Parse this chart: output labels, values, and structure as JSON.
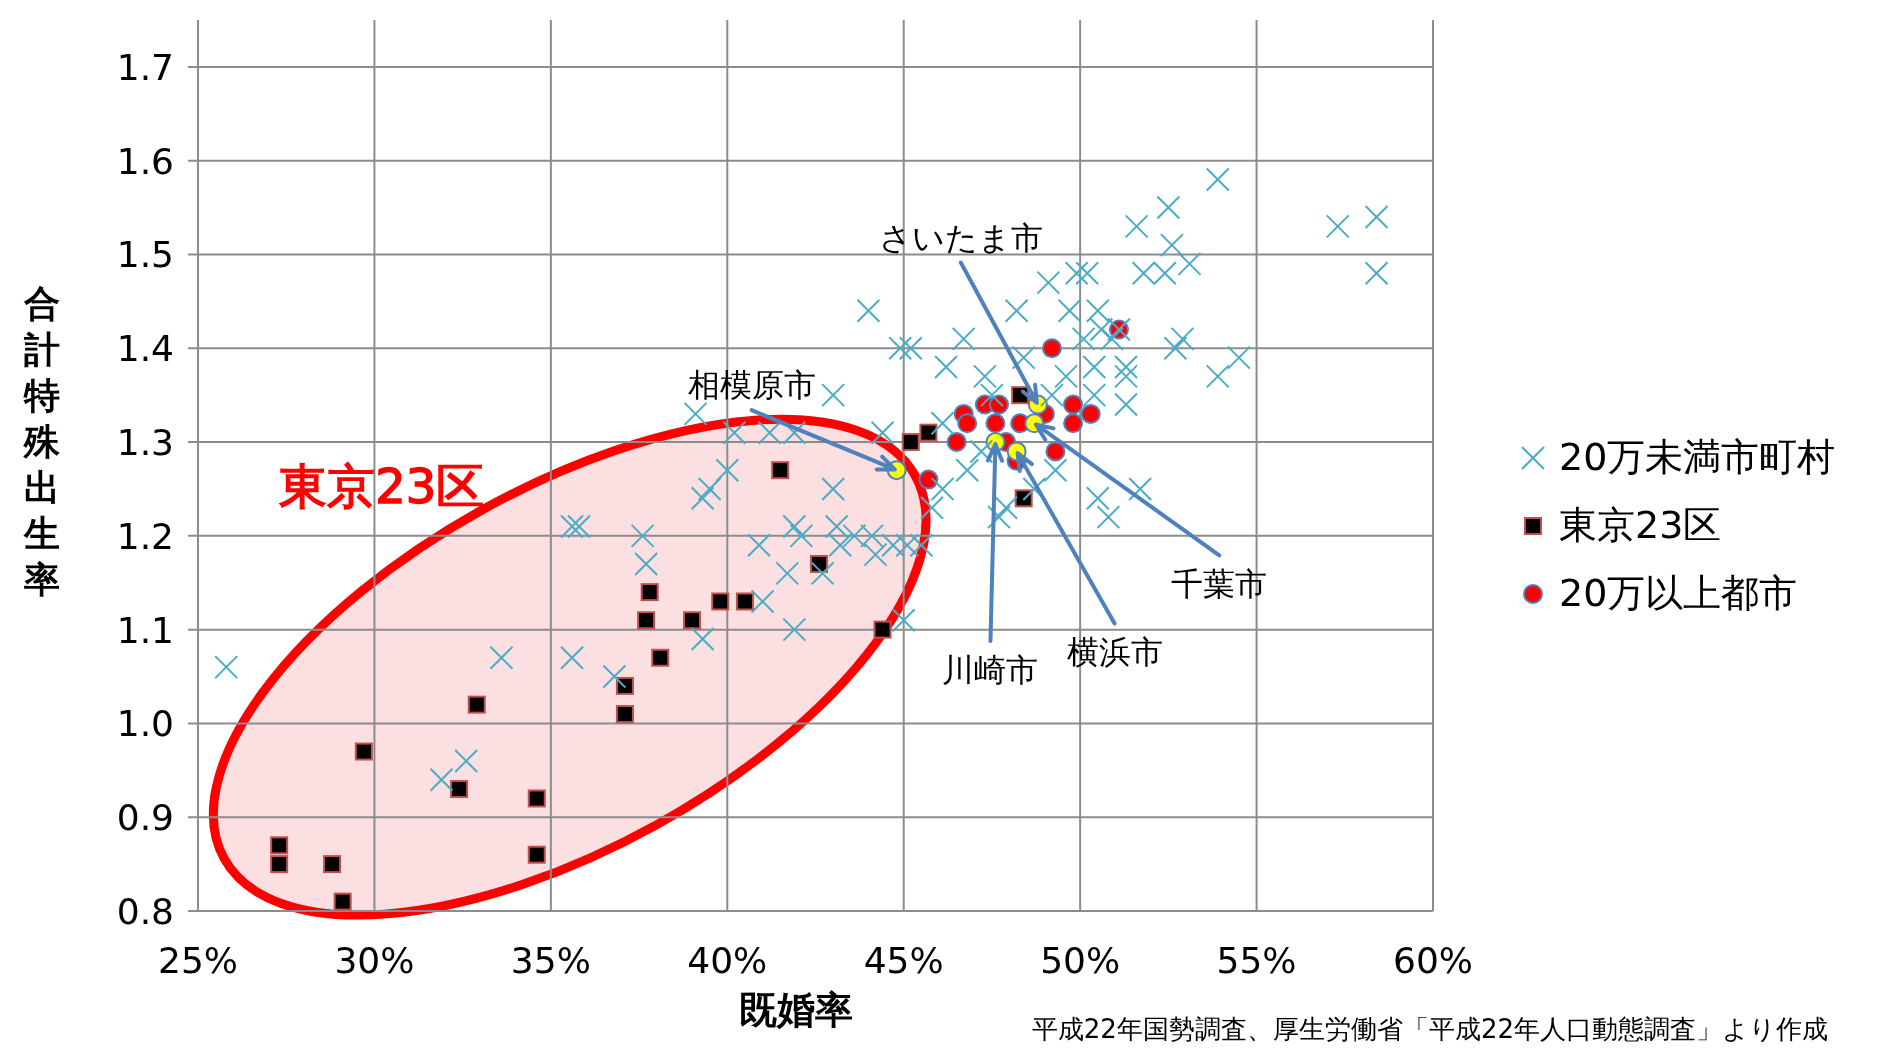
{
  "chart_data": {
    "type": "scatter",
    "xlabel": "既婚率",
    "ylabel": "合計特殊出生率",
    "xlim": [
      25,
      60
    ],
    "xticks": [
      {
        "value": 25,
        "label": "25%"
      },
      {
        "value": 30,
        "label": "30%"
      },
      {
        "value": 35,
        "label": "35%"
      },
      {
        "value": 40,
        "label": "40%"
      },
      {
        "value": 45,
        "label": "45%"
      },
      {
        "value": 50,
        "label": "50%"
      },
      {
        "value": 55,
        "label": "55%"
      },
      {
        "value": 60,
        "label": "60%"
      }
    ],
    "ylim": [
      0.8,
      1.75
    ],
    "yticks": [
      0.8,
      0.9,
      {
        "value": 1,
        "label": "1.0"
      },
      1.1,
      1.2,
      1.3,
      1.4,
      1.5,
      1.6,
      1.7
    ],
    "grid": true,
    "legend": "right",
    "series": [
      {
        "name": "20万未満市町村",
        "marker": "cross",
        "color": "#4bacc6",
        "x": [
          25.8,
          31.9,
          32.6,
          33.6,
          35.6,
          35.6,
          35.8,
          36.8,
          37.6,
          37.7,
          39.3,
          39.3,
          39.5,
          39.1,
          40.0,
          40.2,
          40.9,
          41.0,
          41.2,
          41.9,
          41.9,
          42.1,
          41.9,
          41.7,
          42.7,
          43.0,
          43.0,
          43.1,
          43.2,
          43.6,
          44.1,
          44.2,
          44.4,
          44.7,
          45.0,
          45.1,
          45.5,
          44.0,
          44.9,
          45.2,
          46.2,
          46.7,
          46.1,
          45.8,
          46.1,
          46.8,
          47.2,
          47.3,
          47.5,
          47.7,
          47.9,
          48.2,
          48.4,
          48.7,
          49.2,
          49.3,
          49.6,
          49.1,
          49.7,
          49.9,
          50.2,
          50.1,
          50.4,
          50.5,
          50.6,
          50.4,
          50.9,
          51.3,
          51.3,
          51.3,
          50.5,
          50.8,
          51.7,
          51.6,
          52.5,
          51.8,
          52.4,
          52.6,
          53.1,
          52.7,
          52.9,
          53.9,
          53.9,
          54.5,
          57.3,
          58.4,
          58.4,
          51.1
        ],
        "values": [
          1.06,
          0.94,
          0.96,
          1.07,
          1.07,
          1.21,
          1.21,
          1.05,
          1.2,
          1.17,
          1.09,
          1.24,
          1.25,
          1.33,
          1.27,
          1.31,
          1.19,
          1.13,
          1.31,
          1.31,
          1.21,
          1.2,
          1.1,
          1.16,
          1.16,
          1.35,
          1.25,
          1.21,
          1.19,
          1.2,
          1.2,
          1.18,
          1.31,
          1.19,
          1.11,
          1.19,
          1.19,
          1.44,
          1.4,
          1.4,
          1.38,
          1.41,
          1.32,
          1.23,
          1.25,
          1.27,
          1.29,
          1.37,
          1.35,
          1.22,
          1.23,
          1.44,
          1.39,
          1.25,
          1.35,
          1.27,
          1.37,
          1.47,
          1.44,
          1.48,
          1.48,
          1.41,
          1.35,
          1.44,
          1.42,
          1.38,
          1.41,
          1.38,
          1.37,
          1.34,
          1.24,
          1.22,
          1.25,
          1.53,
          1.55,
          1.48,
          1.48,
          1.51,
          1.49,
          1.4,
          1.41,
          1.58,
          1.37,
          1.39,
          1.53,
          1.54,
          1.48,
          1.42
        ]
      },
      {
        "name": "東京23区",
        "marker": "square",
        "color": "#000000",
        "x": [
          27.3,
          27.3,
          28.8,
          29.1,
          29.7,
          32.4,
          32.9,
          34.6,
          34.6,
          37.1,
          37.1,
          37.7,
          37.8,
          38.1,
          39.0,
          39.8,
          40.5,
          41.5,
          42.6,
          44.4,
          45.2,
          45.7,
          48.3,
          48.4
        ],
        "values": [
          0.87,
          0.85,
          0.85,
          0.81,
          0.97,
          0.93,
          1.02,
          0.92,
          0.86,
          1.01,
          1.04,
          1.11,
          1.14,
          1.07,
          1.11,
          1.13,
          1.13,
          1.27,
          1.17,
          1.1,
          1.3,
          1.31,
          1.35,
          1.24
        ]
      },
      {
        "name": "20万以上都市",
        "marker": "circle",
        "color": "#ff0000",
        "x": [
          45.7,
          46.5,
          46.7,
          46.8,
          47.3,
          47.7,
          47.6,
          47.9,
          48.2,
          48.3,
          49.0,
          49.2,
          49.3,
          49.8,
          49.8,
          50.3,
          51.1,
          44.8,
          47.6,
          48.2,
          48.8,
          48.7
        ],
        "values": [
          1.26,
          1.3,
          1.33,
          1.32,
          1.34,
          1.34,
          1.32,
          1.3,
          1.28,
          1.32,
          1.33,
          1.4,
          1.29,
          1.34,
          1.32,
          1.33,
          1.42,
          1.27,
          1.3,
          1.29,
          1.34,
          1.32
        ],
        "colors": [
          "#ff0000",
          "#ff0000",
          "#ff0000",
          "#ff0000",
          "#ff0000",
          "#ff0000",
          "#ff0000",
          "#ff0000",
          "#ff0000",
          "#ff0000",
          "#ff0000",
          "#ff0000",
          "#ff0000",
          "#ff0000",
          "#ff0000",
          "#ff0000",
          "#ff0000",
          "#ffff00",
          "#ffff00",
          "#ffff00",
          "#ffff00",
          "#ffff00"
        ]
      }
    ],
    "annotations": [
      {
        "text": "さいたま市",
        "x": 48.8,
        "y": 1.34
      },
      {
        "text": "相模原市",
        "x": 44.8,
        "y": 1.27
      },
      {
        "text": "千葉市",
        "x": 48.7,
        "y": 1.32
      },
      {
        "text": "川崎市",
        "x": 47.6,
        "y": 1.3
      },
      {
        "text": "横浜市",
        "x": 48.2,
        "y": 1.29
      },
      "東京23区",
      "平成22年国勢調査、厚生労働省「平成22年人口動態調査」より作成"
    ]
  }
}
